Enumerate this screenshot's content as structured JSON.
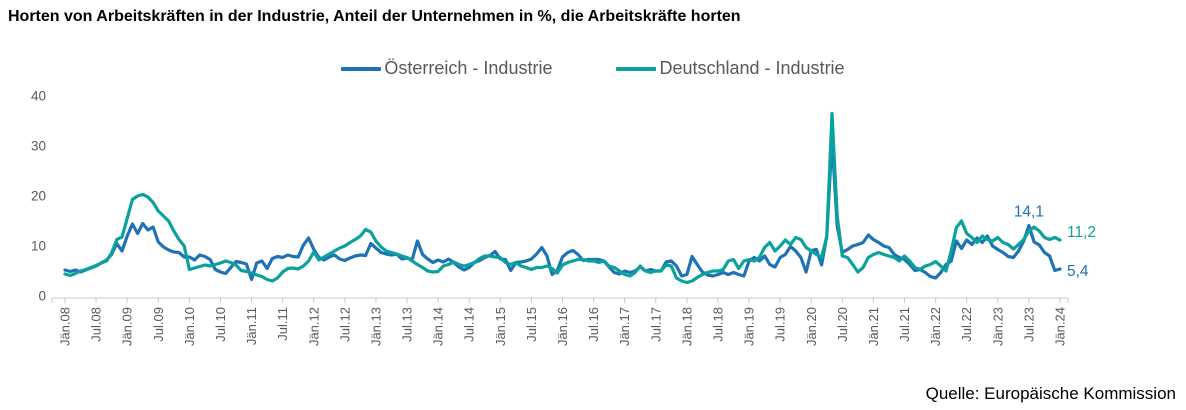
{
  "title": "Horten von Arbeitskräften in der Industrie, Anteil der Unternehmen in %, die Arbeitskräfte horten",
  "source": "Quelle: Europäische Kommission",
  "colors": {
    "austria_blue": "#1F72B5",
    "germany_teal": "#0BA29D",
    "axis_line": "#D6D6D6",
    "tick_line": "#C9C9C9",
    "tick_text": "#595959"
  },
  "legend": [
    {
      "label": "Österreich - Industrie",
      "color": "#1F72B5"
    },
    {
      "label": "Deutschland - Industrie",
      "color": "#0BA29D"
    }
  ],
  "chart_data": {
    "type": "line",
    "x_start": "Jän.08",
    "x_end": "Jän.24",
    "months_per_tick": 6,
    "x_tick_labels": [
      "Jän.08",
      "Jul.08",
      "Jän.09",
      "Jul.09",
      "Jän.10",
      "Jul.10",
      "Jän.11",
      "Jul.11",
      "Jän.12",
      "Jul.12",
      "Jän.13",
      "Jul.13",
      "Jän.14",
      "Jul.14",
      "Jän.15",
      "Jul.15",
      "Jän.16",
      "Jul.16",
      "Jän.17",
      "Jul.17",
      "Jän.18",
      "Jul.18",
      "Jän.19",
      "Jul.19",
      "Jän.20",
      "Jul.20",
      "Jän.21",
      "Jul.21",
      "Jän.22",
      "Jul.22",
      "Jän.23",
      "Jul.23",
      "Jän.24"
    ],
    "ylim": [
      0,
      40
    ],
    "yticks": [
      0,
      10,
      20,
      30,
      40
    ],
    "grid": false,
    "legend_position": "top",
    "series": [
      {
        "name": "Österreich - Industrie",
        "color": "#1F72B5",
        "values": [
          5.2,
          4.9,
          5.2,
          4.8,
          5.2,
          5.6,
          6.0,
          6.6,
          7.2,
          8.3,
          10.5,
          9.0,
          12.0,
          14.4,
          12.5,
          14.5,
          13.2,
          13.8,
          10.8,
          9.8,
          9.2,
          8.8,
          8.7,
          7.8,
          7.8,
          7.2,
          8.2,
          7.9,
          7.3,
          5.3,
          4.8,
          4.5,
          5.7,
          6.9,
          6.7,
          6.4,
          3.3,
          6.6,
          7.0,
          5.5,
          7.5,
          7.9,
          7.7,
          8.2,
          7.9,
          7.8,
          10.2,
          11.6,
          9.3,
          7.7,
          7.2,
          7.8,
          8.2,
          7.4,
          7.1,
          7.6,
          8.0,
          8.2,
          8.1,
          10.5,
          9.6,
          8.7,
          8.4,
          8.2,
          8.4,
          7.4,
          7.6,
          7.3,
          11.0,
          8.3,
          7.4,
          6.7,
          7.2,
          6.8,
          7.4,
          6.7,
          5.8,
          5.2,
          5.7,
          6.7,
          7.1,
          7.7,
          8.1,
          8.9,
          7.4,
          7.3,
          5.1,
          6.7,
          6.8,
          7.0,
          7.4,
          8.4,
          9.7,
          8.0,
          4.3,
          5.1,
          7.8,
          8.7,
          9.1,
          8.3,
          7.1,
          7.3,
          7.3,
          7.3,
          7.0,
          5.8,
          4.7,
          4.4,
          5.0,
          4.7,
          5.0,
          5.8,
          5.0,
          5.3,
          5.0,
          5.0,
          6.8,
          7.0,
          6.0,
          4.0,
          4.3,
          7.9,
          6.3,
          4.8,
          4.2,
          4.0,
          4.3,
          4.7,
          4.3,
          4.7,
          4.3,
          4.0,
          7.0,
          7.7,
          7.0,
          8.0,
          6.3,
          5.8,
          7.7,
          8.3,
          9.9,
          9.0,
          7.7,
          4.8,
          9.1,
          9.3,
          6.2,
          12.0,
          31.5,
          14.0,
          8.7,
          9.3,
          10.0,
          10.3,
          10.7,
          12.2,
          11.3,
          10.7,
          10.0,
          9.7,
          8.3,
          7.7,
          7.3,
          6.3,
          5.1,
          5.3,
          4.7,
          3.9,
          3.6,
          4.7,
          6.3,
          7.0,
          11.0,
          9.5,
          11.2,
          10.3,
          11.6,
          10.7,
          12.0,
          10.0,
          9.3,
          8.7,
          7.9,
          7.7,
          9.0,
          11.0,
          14.1,
          10.8,
          10.2,
          8.7,
          8.0,
          5.1,
          5.4
        ]
      },
      {
        "name": "Deutschland - Industrie",
        "color": "#0BA29D",
        "values": [
          4.4,
          4.1,
          4.5,
          5.0,
          5.3,
          5.7,
          6.1,
          6.6,
          7.0,
          8.6,
          11.3,
          11.8,
          15.5,
          19.3,
          20.0,
          20.3,
          19.8,
          18.7,
          17.0,
          16.0,
          15.0,
          13.0,
          11.3,
          10.0,
          5.3,
          5.6,
          5.9,
          6.2,
          6.0,
          6.3,
          6.6,
          7.0,
          6.7,
          6.2,
          5.1,
          4.9,
          4.6,
          4.2,
          3.9,
          3.3,
          3.0,
          3.6,
          4.8,
          5.5,
          5.6,
          5.4,
          6.0,
          7.0,
          8.8,
          7.2,
          7.8,
          8.4,
          9.0,
          9.6,
          10.0,
          10.7,
          11.3,
          12.0,
          13.3,
          12.8,
          11.0,
          9.8,
          9.0,
          8.7,
          8.4,
          8.0,
          7.7,
          7.0,
          6.3,
          5.7,
          5.0,
          4.8,
          4.9,
          6.0,
          6.3,
          6.8,
          6.3,
          6.0,
          6.3,
          6.7,
          7.5,
          8.0,
          8.0,
          7.8,
          7.7,
          6.7,
          6.3,
          6.7,
          6.0,
          5.7,
          5.3,
          5.7,
          5.7,
          6.0,
          5.5,
          4.6,
          6.2,
          6.7,
          7.0,
          7.3,
          7.3,
          7.0,
          7.0,
          6.7,
          7.0,
          6.0,
          5.7,
          5.0,
          4.3,
          4.0,
          4.7,
          6.0,
          5.0,
          4.7,
          5.0,
          5.0,
          6.2,
          6.0,
          3.6,
          3.0,
          2.7,
          3.0,
          3.7,
          4.3,
          4.7,
          5.0,
          5.0,
          5.3,
          7.0,
          7.3,
          5.5,
          7.0,
          7.3,
          7.0,
          7.7,
          9.7,
          10.7,
          9.0,
          10.0,
          11.2,
          10.3,
          11.7,
          11.3,
          9.7,
          9.0,
          8.3,
          7.7,
          12.0,
          36.5,
          16.0,
          8.0,
          7.7,
          6.3,
          4.8,
          5.7,
          7.7,
          8.3,
          8.7,
          8.3,
          8.0,
          7.7,
          7.0,
          8.0,
          7.0,
          5.7,
          5.3,
          6.0,
          6.3,
          6.9,
          6.0,
          5.0,
          9.0,
          13.7,
          15.0,
          12.5,
          11.7,
          10.7,
          12.0,
          11.3,
          11.0,
          11.7,
          10.7,
          10.3,
          9.4,
          10.3,
          11.3,
          13.0,
          13.8,
          13.0,
          11.7,
          11.3,
          11.7,
          11.2
        ]
      }
    ],
    "annotations": [
      {
        "text": "14,1",
        "series": "Österreich - Industrie",
        "color": "#1F72B5",
        "x_index": 186,
        "y": 14.1,
        "position": "above"
      },
      {
        "text": "11,2",
        "series": "Deutschland - Industrie",
        "color": "#0BA29D",
        "x_index": 192,
        "y": 11.2,
        "position": "right-up"
      },
      {
        "text": "5,4",
        "series": "Österreich - Industrie",
        "color": "#1F72B5",
        "x_index": 192,
        "y": 5.4,
        "position": "right-down"
      }
    ]
  }
}
